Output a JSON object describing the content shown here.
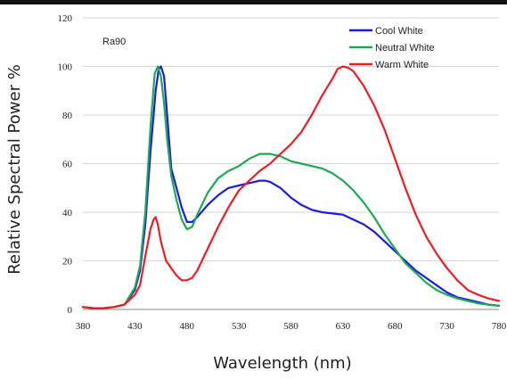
{
  "chart_data": {
    "type": "line",
    "title": "",
    "xlabel": "Wavelength (nm)",
    "ylabel": "Relative Spectral Power %",
    "xlim": [
      380,
      780
    ],
    "ylim": [
      0,
      120
    ],
    "xticks": [
      380,
      430,
      480,
      530,
      580,
      630,
      680,
      730,
      780
    ],
    "yticks": [
      0,
      20,
      40,
      60,
      80,
      100,
      120
    ],
    "grid": "horizontal",
    "legend_position": "top-right",
    "annotation": "Ra90",
    "series": [
      {
        "name": "Cool White",
        "color": "#1c1cdc",
        "x": [
          380,
          390,
          400,
          410,
          420,
          430,
          435,
          440,
          445,
          450,
          453,
          455,
          458,
          461,
          465,
          470,
          475,
          480,
          485,
          490,
          500,
          510,
          520,
          530,
          540,
          550,
          555,
          560,
          570,
          580,
          590,
          600,
          610,
          620,
          630,
          640,
          650,
          660,
          670,
          680,
          690,
          700,
          710,
          720,
          730,
          740,
          750,
          760,
          770,
          780
        ],
        "y": [
          1,
          0.5,
          0.5,
          1,
          2,
          8,
          16,
          35,
          65,
          90,
          99,
          100,
          96,
          80,
          58,
          50,
          42,
          36,
          36,
          38,
          43,
          47,
          50,
          51,
          52,
          53,
          53,
          52.5,
          50,
          46,
          43,
          41,
          40,
          39.5,
          39,
          37,
          35,
          32,
          28,
          24,
          20,
          16,
          13,
          10,
          7,
          5,
          4,
          3,
          2,
          1.5
        ]
      },
      {
        "name": "Neutral White",
        "color": "#1fa855",
        "x": [
          380,
          390,
          400,
          410,
          420,
          430,
          435,
          440,
          445,
          449,
          452,
          455,
          458,
          461,
          465,
          470,
          475,
          480,
          485,
          490,
          500,
          510,
          520,
          530,
          540,
          550,
          560,
          570,
          580,
          590,
          600,
          610,
          620,
          630,
          640,
          650,
          660,
          670,
          680,
          690,
          700,
          710,
          720,
          730,
          740,
          750,
          760,
          770,
          780
        ],
        "y": [
          1,
          0.5,
          0.5,
          1,
          2,
          9,
          18,
          40,
          75,
          97,
          100,
          96,
          85,
          70,
          55,
          45,
          37,
          33,
          34,
          39,
          48,
          54,
          57,
          59,
          62,
          64,
          64,
          63,
          61,
          60,
          59,
          58,
          56,
          53,
          49,
          44,
          38,
          31,
          25,
          19,
          15,
          11,
          8,
          6,
          4.5,
          3.5,
          2.5,
          2,
          1.5
        ]
      },
      {
        "name": "Warm White",
        "color": "#e81e24",
        "x": [
          380,
          390,
          400,
          410,
          420,
          430,
          435,
          440,
          445,
          448,
          450,
          452,
          455,
          460,
          465,
          470,
          475,
          480,
          485,
          490,
          500,
          510,
          520,
          530,
          540,
          550,
          560,
          570,
          580,
          590,
          600,
          610,
          620,
          625,
          630,
          635,
          640,
          650,
          660,
          670,
          680,
          690,
          700,
          710,
          720,
          730,
          740,
          750,
          760,
          770,
          780
        ],
        "y": [
          1,
          0.5,
          0.5,
          1,
          2,
          6,
          10,
          22,
          33,
          37,
          38,
          35,
          28,
          20,
          17,
          14,
          12,
          12,
          13,
          16,
          25,
          34,
          42,
          49,
          53,
          57,
          60,
          64,
          68,
          73,
          80,
          88,
          95,
          99,
          100,
          99.5,
          98,
          92,
          84,
          74,
          62,
          50,
          39,
          30,
          23,
          17,
          12,
          8,
          6,
          4.5,
          3.5
        ]
      }
    ]
  }
}
